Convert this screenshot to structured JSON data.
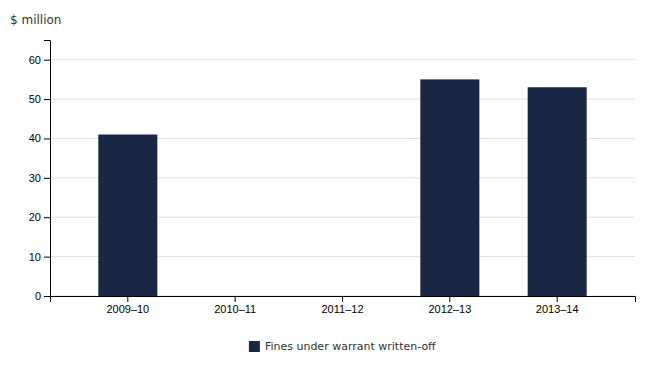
{
  "chart_data": {
    "type": "bar",
    "ylabel": "$ million",
    "categories": [
      "2009–10",
      "2010–11",
      "2011–12",
      "2012–13",
      "2013–14"
    ],
    "series": [
      {
        "name": "Fines under warrant written-off",
        "color": "#1a2744",
        "values": [
          41,
          0,
          0,
          55,
          53
        ]
      }
    ],
    "ylim": [
      0,
      65
    ],
    "yticks": [
      0,
      10,
      20,
      30,
      40,
      50,
      60
    ],
    "grid": true,
    "legend": "bottom"
  }
}
